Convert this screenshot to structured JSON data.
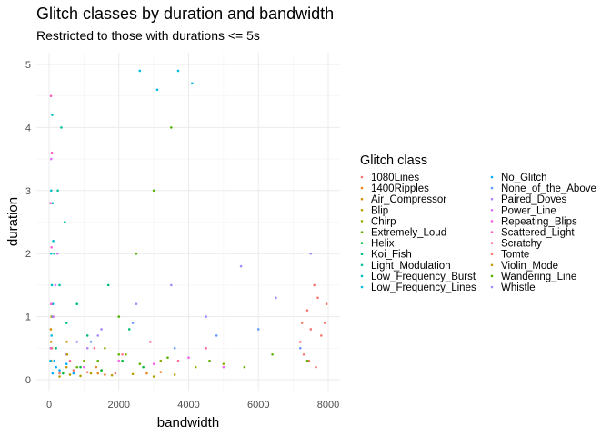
{
  "chart_data": {
    "type": "scatter",
    "title": "Glitch classes by duration and bandwidth",
    "subtitle": "Restricted to those with durations <= 5s",
    "xlabel": "bandwidth",
    "ylabel": "duration",
    "xlim": [
      0,
      8000
    ],
    "ylim": [
      0,
      5
    ],
    "xticks": [
      0,
      2000,
      4000,
      6000,
      8000
    ],
    "yticks": [
      0,
      1,
      2,
      3,
      4,
      5
    ],
    "xtick_labels": [
      "0",
      "2000",
      "4000",
      "6000",
      "8000"
    ],
    "ytick_labels": [
      "0",
      "1",
      "2",
      "3",
      "4",
      "5"
    ],
    "grid": true,
    "legend_title": "Glitch class",
    "legend_placement": "right",
    "series": [
      {
        "name": "1080Lines",
        "color": "#F8766D",
        "points": [
          [
            7200,
            0.6
          ],
          [
            7400,
            1.1
          ],
          [
            7500,
            0.8
          ],
          [
            7700,
            1.3
          ],
          [
            7900,
            0.9
          ],
          [
            7300,
            0.4
          ],
          [
            7600,
            1.5
          ],
          [
            7800,
            0.7
          ],
          [
            7450,
            0.3
          ],
          [
            7950,
            1.2
          ],
          [
            7250,
            0.9
          ],
          [
            7650,
            0.2
          ]
        ]
      },
      {
        "name": "1400Ripples",
        "color": "#E88526",
        "points": [
          [
            1400,
            0.1
          ],
          [
            1500,
            0.15
          ],
          [
            1600,
            0.08
          ],
          [
            1350,
            0.2
          ],
          [
            2800,
            0.1
          ],
          [
            3200,
            0.12
          ]
        ]
      },
      {
        "name": "Air_Compressor",
        "color": "#D39200",
        "points": [
          [
            60,
            0.3
          ],
          [
            80,
            0.5
          ],
          [
            50,
            0.8
          ],
          [
            70,
            1.0
          ],
          [
            55,
            0.6
          ]
        ]
      },
      {
        "name": "Blip",
        "color": "#B79F00",
        "points": [
          [
            300,
            0.05
          ],
          [
            600,
            0.08
          ],
          [
            900,
            0.06
          ],
          [
            1200,
            0.1
          ],
          [
            1800,
            0.07
          ],
          [
            2400,
            0.09
          ],
          [
            3000,
            0.05
          ],
          [
            3600,
            0.08
          ]
        ]
      },
      {
        "name": "Chirp",
        "color": "#93AA00",
        "points": [
          [
            1000,
            0.3
          ],
          [
            1600,
            0.5
          ],
          [
            2200,
            0.4
          ],
          [
            3200,
            0.3
          ],
          [
            4200,
            0.2
          ],
          [
            5000,
            0.25
          ]
        ]
      },
      {
        "name": "Extremely_Loud",
        "color": "#5EB300",
        "points": [
          [
            800,
            0.2
          ],
          [
            1400,
            0.3
          ],
          [
            2000,
            0.4
          ],
          [
            2600,
            0.25
          ],
          [
            3400,
            0.35
          ],
          [
            4600,
            0.3
          ],
          [
            5600,
            0.2
          ],
          [
            6400,
            0.4
          ],
          [
            7400,
            0.3
          ]
        ]
      },
      {
        "name": "Helix",
        "color": "#00BA38",
        "points": [
          [
            400,
            0.1
          ],
          [
            900,
            0.2
          ],
          [
            1500,
            0.15
          ],
          [
            2100,
            0.3
          ],
          [
            2700,
            0.2
          ]
        ]
      },
      {
        "name": "Koi_Fish",
        "color": "#00BF74",
        "points": [
          [
            200,
            0.5
          ],
          [
            500,
            0.9
          ],
          [
            800,
            1.2
          ],
          [
            1100,
            0.7
          ],
          [
            1700,
            1.5
          ],
          [
            2300,
            0.8
          ]
        ]
      },
      {
        "name": "Light_Modulation",
        "color": "#00C19F",
        "points": [
          [
            150,
            2.0
          ],
          [
            250,
            3.0
          ],
          [
            350,
            4.0
          ],
          [
            450,
            2.5
          ],
          [
            300,
            1.5
          ]
        ]
      },
      {
        "name": "Low_Frequency_Burst",
        "color": "#00BFC4",
        "points": [
          [
            50,
            0.5
          ],
          [
            100,
            1.0
          ],
          [
            80,
            1.5
          ],
          [
            120,
            2.2
          ],
          [
            60,
            3.0
          ],
          [
            90,
            4.2
          ]
        ]
      },
      {
        "name": "Low_Frequency_Lines",
        "color": "#00B9E3",
        "points": [
          [
            40,
            0.3
          ],
          [
            70,
            0.7
          ],
          [
            110,
            1.2
          ],
          [
            60,
            2.0
          ],
          [
            100,
            2.8
          ],
          [
            2600,
            4.9
          ],
          [
            3100,
            4.6
          ],
          [
            3700,
            4.9
          ],
          [
            4100,
            4.7
          ]
        ]
      },
      {
        "name": "No_Glitch",
        "color": "#00ADFA",
        "points": [
          [
            100,
            0.1
          ],
          [
            200,
            0.2
          ],
          [
            300,
            0.15
          ],
          [
            500,
            0.25
          ],
          [
            700,
            0.1
          ],
          [
            150,
            0.3
          ]
        ]
      },
      {
        "name": "None_of_the_Above",
        "color": "#619CFF",
        "points": [
          [
            1200,
            0.6
          ],
          [
            2400,
            0.9
          ],
          [
            3600,
            0.5
          ],
          [
            4800,
            0.7
          ],
          [
            6000,
            0.8
          ],
          [
            7200,
            0.5
          ]
        ]
      },
      {
        "name": "Paired_Doves",
        "color": "#AE87FF",
        "points": [
          [
            500,
            0.4
          ],
          [
            800,
            0.6
          ],
          [
            1100,
            0.5
          ],
          [
            1400,
            0.7
          ]
        ]
      },
      {
        "name": "Power_Line",
        "color": "#DB72FB",
        "points": [
          [
            60,
            0.5
          ],
          [
            120,
            1.0
          ],
          [
            180,
            1.5
          ],
          [
            240,
            2.0
          ],
          [
            60,
            3.5
          ]
        ]
      },
      {
        "name": "Repeating_Blips",
        "color": "#F564E3",
        "points": [
          [
            1000,
            0.2
          ],
          [
            2000,
            0.3
          ],
          [
            3000,
            0.25
          ],
          [
            4000,
            0.35
          ],
          [
            5000,
            0.2
          ]
        ]
      },
      {
        "name": "Scattered_Light",
        "color": "#FF61C3",
        "points": [
          [
            50,
            0.5
          ],
          [
            60,
            1.2
          ],
          [
            70,
            2.1
          ],
          [
            40,
            2.8
          ],
          [
            80,
            3.6
          ],
          [
            55,
            4.5
          ]
        ]
      },
      {
        "name": "Scratchy",
        "color": "#FF6C91",
        "points": [
          [
            600,
            0.3
          ],
          [
            1300,
            0.5
          ],
          [
            2100,
            0.4
          ],
          [
            2900,
            0.6
          ],
          [
            3700,
            0.3
          ],
          [
            4500,
            0.5
          ]
        ]
      },
      {
        "name": "Tomte",
        "color": "#F8766D",
        "points": [
          [
            300,
            0.1
          ],
          [
            700,
            0.15
          ],
          [
            1100,
            0.12
          ],
          [
            1900,
            0.1
          ]
        ]
      },
      {
        "name": "Violin_Mode",
        "color": "#C49A00",
        "points": [
          [
            500,
            0.2
          ],
          [
            520,
            0.4
          ],
          [
            510,
            0.6
          ]
        ]
      },
      {
        "name": "Wandering_Line",
        "color": "#53B400",
        "points": [
          [
            2000,
            1.0
          ],
          [
            2500,
            2.0
          ],
          [
            3000,
            3.0
          ],
          [
            3500,
            4.0
          ]
        ]
      },
      {
        "name": "Whistle",
        "color": "#A58AFF",
        "points": [
          [
            1500,
            0.8
          ],
          [
            2500,
            1.2
          ],
          [
            3500,
            1.5
          ],
          [
            4500,
            1.0
          ],
          [
            5500,
            1.8
          ],
          [
            6500,
            1.3
          ],
          [
            7500,
            2.0
          ]
        ]
      }
    ]
  }
}
